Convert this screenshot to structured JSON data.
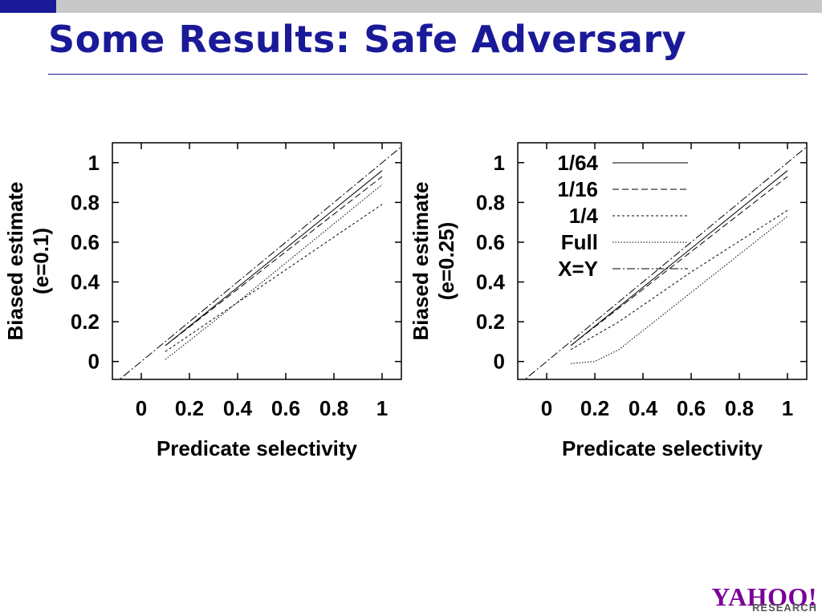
{
  "slide": {
    "title": "Some Results: Safe Adversary"
  },
  "colors": {
    "title": "#1a1a99",
    "top_bar": "#c8c8c8",
    "top_bar_accent": "#1a1a99",
    "logo": "#7b0099"
  },
  "logo": {
    "main": "YAHOO!",
    "sub": "RESEARCH"
  },
  "chart_data": [
    {
      "type": "line",
      "xlabel": "Predicate selectivity",
      "ylabel": "Biased estimate",
      "ylabel2": "(e=0.1)",
      "xlim": [
        -0.12,
        1.08
      ],
      "ylim": [
        -0.09,
        1.1
      ],
      "xticks": [
        "0",
        "0.2",
        "0.4",
        "0.6",
        "0.8",
        "1"
      ],
      "yticks": [
        "0",
        "0.2",
        "0.4",
        "0.6",
        "0.8",
        "1"
      ],
      "legend": null,
      "series": [
        {
          "name": "1/64",
          "dash": "",
          "x": [
            0.1,
            1.0
          ],
          "y": [
            0.08,
            0.96
          ]
        },
        {
          "name": "1/16",
          "dash": "8,4",
          "x": [
            0.1,
            1.0
          ],
          "y": [
            0.08,
            0.93
          ]
        },
        {
          "name": "1/4",
          "dash": "3,3",
          "x": [
            0.1,
            1.0
          ],
          "y": [
            0.05,
            0.79
          ]
        },
        {
          "name": "Full",
          "dash": "1.5,2",
          "x": [
            0.1,
            0.3,
            1.0
          ],
          "y": [
            0.01,
            0.2,
            0.89
          ]
        },
        {
          "name": "X=Y",
          "dash": "10,3,2,3",
          "x": [
            -0.12,
            1.08
          ],
          "y": [
            -0.12,
            1.08
          ]
        }
      ]
    },
    {
      "type": "line",
      "xlabel": "Predicate selectivity",
      "ylabel": "Biased estimate",
      "ylabel2": "(e=0.25)",
      "xlim": [
        -0.12,
        1.08
      ],
      "ylim": [
        -0.09,
        1.1
      ],
      "xticks": [
        "0",
        "0.2",
        "0.4",
        "0.6",
        "0.8",
        "1"
      ],
      "yticks": [
        "0",
        "0.2",
        "0.4",
        "0.6",
        "0.8",
        "1"
      ],
      "legend": "top-left",
      "series": [
        {
          "name": "1/64",
          "dash": "",
          "x": [
            0.1,
            1.0
          ],
          "y": [
            0.08,
            0.96
          ]
        },
        {
          "name": "1/16",
          "dash": "8,4",
          "x": [
            0.1,
            1.0
          ],
          "y": [
            0.08,
            0.93
          ]
        },
        {
          "name": "1/4",
          "dash": "3,3",
          "x": [
            0.1,
            0.3,
            0.6,
            1.0
          ],
          "y": [
            0.06,
            0.2,
            0.45,
            0.76
          ]
        },
        {
          "name": "Full",
          "dash": "1.5,2",
          "x": [
            0.1,
            0.2,
            0.3,
            1.0
          ],
          "y": [
            -0.01,
            0.0,
            0.06,
            0.73
          ]
        },
        {
          "name": "X=Y",
          "dash": "10,3,2,3",
          "x": [
            -0.12,
            1.08
          ],
          "y": [
            -0.12,
            1.08
          ]
        }
      ]
    }
  ]
}
